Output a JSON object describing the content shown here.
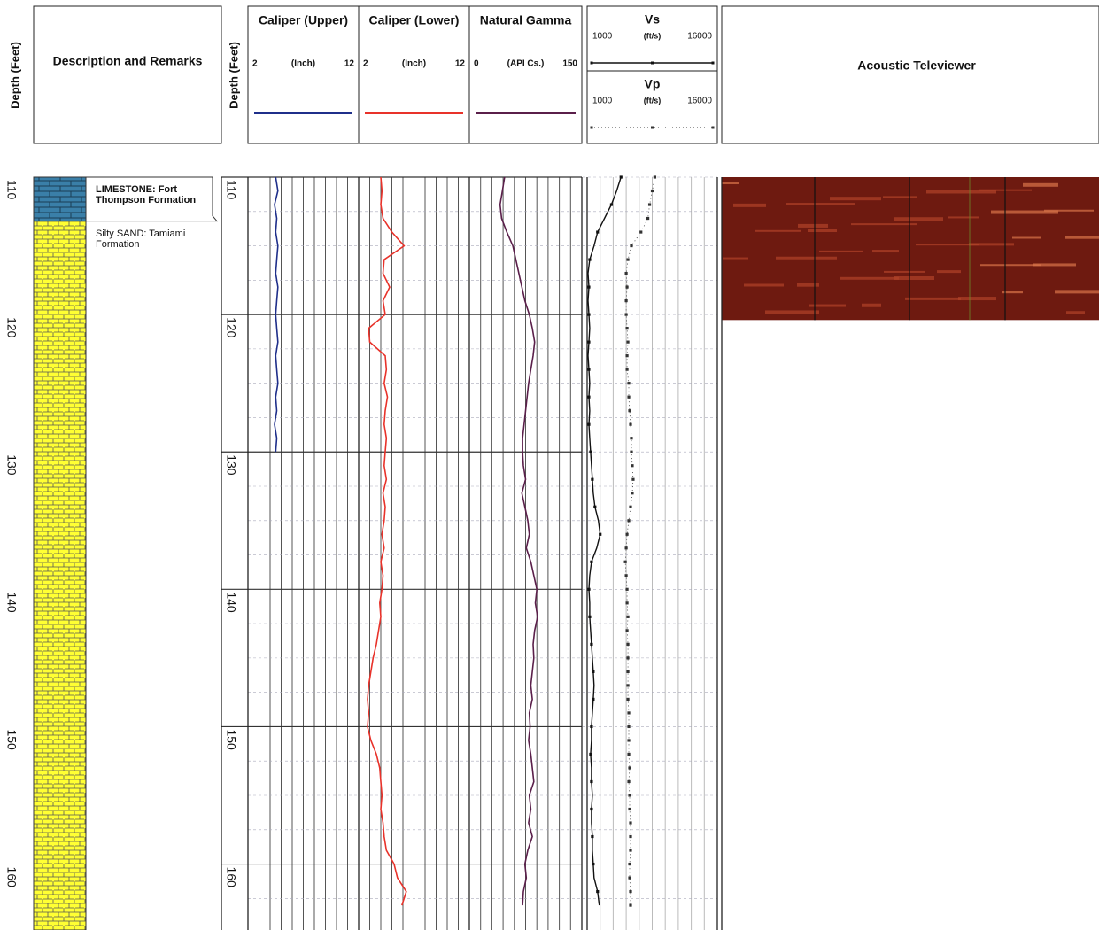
{
  "chart_data": {
    "type": "welllog",
    "depth_label": "Depth (Feet)",
    "description_label": "Description and Remarks",
    "ylim": [
      110,
      164.8
    ],
    "yticks": [
      110,
      120,
      130,
      140,
      150,
      160
    ],
    "lithology": [
      {
        "name": "LIMESTONE: Fort Thompson Formation",
        "top": 110,
        "bottom": 113.2,
        "color": "#3a7fa8",
        "pattern": "brick"
      },
      {
        "name": "Silty SAND: Tamiami Formation",
        "top": 113.2,
        "bottom": 164.8,
        "color": "#ffff33",
        "pattern": "sand"
      }
    ],
    "depths": [
      110,
      111,
      112,
      113,
      114,
      115,
      116,
      117,
      118,
      119,
      120,
      121,
      122,
      123,
      124,
      125,
      126,
      127,
      128,
      129,
      130,
      131,
      132,
      133,
      134,
      135,
      136,
      137,
      138,
      139,
      140,
      141,
      142,
      143,
      144,
      145,
      146,
      147,
      148,
      149,
      150,
      151,
      152,
      153,
      154,
      155,
      156,
      157,
      158,
      159,
      160,
      161,
      162,
      163
    ],
    "tracks": [
      {
        "name": "Caliper (Upper)",
        "unit": "(Inch)",
        "xlim": [
          2,
          12
        ],
        "color": "#1f2f8a",
        "depths": [
          110,
          111,
          112,
          113,
          114,
          115,
          116,
          117,
          118,
          119,
          120,
          121,
          122,
          123,
          124,
          125,
          126,
          127,
          128,
          129,
          130
        ],
        "values": [
          4.5,
          4.7,
          4.4,
          4.6,
          4.5,
          4.7,
          4.6,
          4.5,
          4.7,
          4.6,
          4.5,
          4.6,
          4.7,
          4.5,
          4.6,
          4.7,
          4.5,
          4.6,
          4.4,
          4.6,
          4.5
        ]
      },
      {
        "name": "Caliper (Lower)",
        "unit": "(Inch)",
        "xlim": [
          2,
          12
        ],
        "color": "#e8322a",
        "values": [
          4.0,
          4.1,
          4.0,
          4.2,
          5.0,
          6.1,
          4.3,
          4.2,
          4.8,
          4.2,
          4.4,
          2.9,
          3.0,
          4.4,
          4.5,
          4.3,
          4.6,
          4.4,
          4.3,
          4.5,
          4.4,
          4.3,
          4.5,
          4.2,
          4.4,
          4.3,
          4.1,
          4.3,
          4.0,
          4.2,
          4.1,
          3.9,
          4.0,
          3.8,
          3.6,
          3.3,
          3.1,
          2.9,
          2.8,
          2.9,
          2.8,
          3.1,
          3.6,
          3.9,
          4.0,
          4.1,
          4.0,
          4.2,
          4.3,
          4.5,
          5.2,
          5.5,
          6.3,
          5.9
        ]
      },
      {
        "name": "Natural Gamma",
        "unit": "(API Cs.)",
        "xlim": [
          0,
          150
        ],
        "color": "#5a1f4a",
        "values": [
          47,
          44,
          41,
          43,
          50,
          58,
          62,
          66,
          70,
          74,
          80,
          84,
          87,
          85,
          82,
          79,
          77,
          75,
          73,
          71,
          71,
          72,
          75,
          70,
          74,
          78,
          80,
          76,
          82,
          86,
          90,
          88,
          91,
          87,
          85,
          86,
          84,
          82,
          84,
          80,
          81,
          79,
          82,
          84,
          86,
          80,
          82,
          79,
          84,
          78,
          74,
          76,
          72,
          71
        ]
      }
    ],
    "velocity": [
      {
        "name": "Vs",
        "unit": "(ft/s)",
        "xlim": [
          1000,
          16000
        ],
        "color": "#111111",
        "style": "solid",
        "values": [
          4900,
          4400,
          3800,
          3000,
          2200,
          1800,
          1300,
          1100,
          1200,
          1100,
          1200,
          1300,
          1200,
          1100,
          1200,
          1300,
          1200,
          1300,
          1200,
          1300,
          1400,
          1500,
          1600,
          1700,
          1900,
          2300,
          2500,
          2100,
          1500,
          1300,
          1200,
          1300,
          1300,
          1400,
          1500,
          1600,
          1700,
          1800,
          1700,
          1600,
          1500,
          1500,
          1400,
          1500,
          1500,
          1600,
          1500,
          1500,
          1600,
          1600,
          1700,
          1800,
          2200,
          2400
        ]
      },
      {
        "name": "Vp",
        "unit": "(ft/s)",
        "xlim": [
          1000,
          16000
        ],
        "color": "#333333",
        "style": "dotted",
        "values": [
          8800,
          8500,
          8200,
          8000,
          7200,
          6100,
          5700,
          5500,
          5600,
          5500,
          5500,
          5600,
          5700,
          5600,
          5600,
          5800,
          5800,
          5900,
          6000,
          6100,
          6100,
          6200,
          6300,
          6200,
          6000,
          5800,
          5600,
          5500,
          5400,
          5500,
          5600,
          5600,
          5700,
          5600,
          5700,
          5700,
          5700,
          5700,
          5700,
          5800,
          5800,
          5800,
          5800,
          5900,
          5800,
          5900,
          5900,
          6000,
          6000,
          6000,
          5900,
          5900,
          6000,
          6000
        ]
      }
    ],
    "televiewer": {
      "title": "Acoustic Televiewer",
      "color": "#6e1a10",
      "top": 110,
      "bottom": 120.4
    }
  }
}
